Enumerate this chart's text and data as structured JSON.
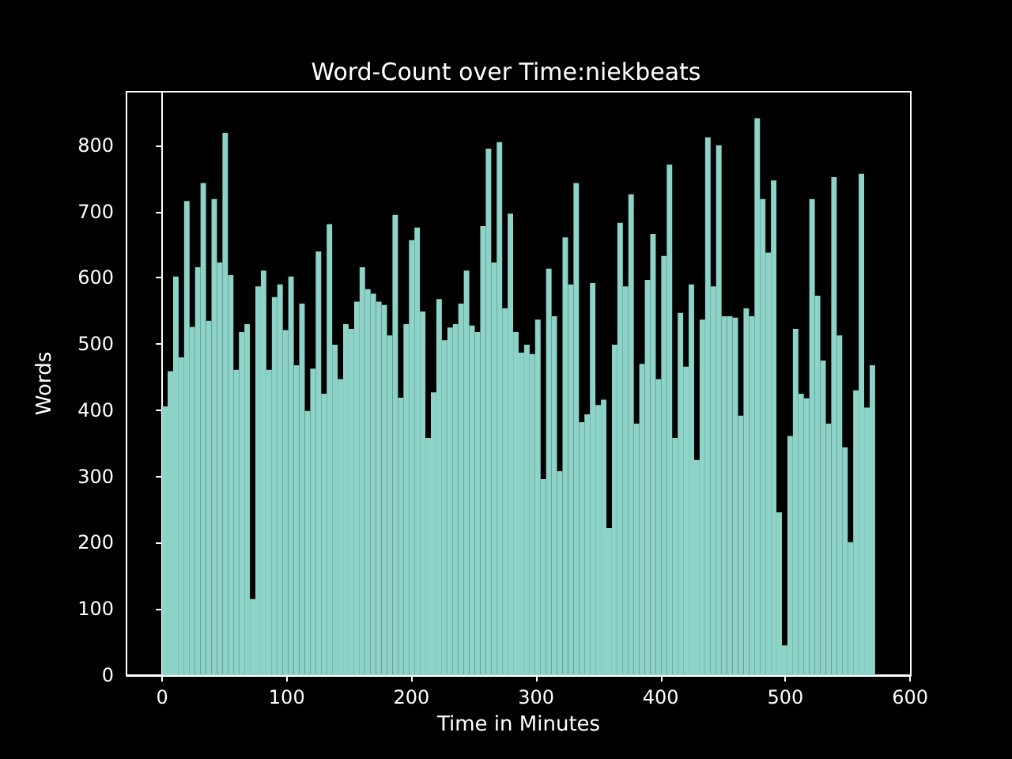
{
  "chart_data": {
    "type": "histogram",
    "title": "Word-Count over Time:niekbeats",
    "xlabel": "Time in Minutes",
    "ylabel": "Words",
    "color": "#8dd3c7",
    "bins": [
      0,
      4.4,
      8.8,
      13.2,
      17.6,
      22,
      26.4,
      30.8,
      35.2,
      39.6,
      44,
      48.4,
      52.8,
      57.2,
      61.6,
      66,
      70.4,
      74.8,
      79.2,
      83.6,
      88,
      92.4,
      96.8,
      101.2,
      105.6,
      110,
      114.4,
      118.8,
      123.2,
      127.6,
      132,
      136.4,
      140.8,
      145.2,
      149.6,
      154,
      158.4,
      162.8,
      167.2,
      171.6,
      176,
      180.4,
      184.8,
      189.2,
      193.6,
      198,
      202.4,
      206.8,
      211.2,
      215.6,
      220,
      224.4,
      228.8,
      233.2,
      237.6,
      242,
      246.4,
      250.8,
      255.2,
      259.6,
      264,
      268.4,
      272.8,
      277.2,
      281.6,
      286,
      290.4,
      294.8,
      299.2,
      303.6,
      308,
      312.4,
      316.8,
      321.2,
      325.6,
      330,
      334.4,
      338.8,
      343.2,
      347.6,
      352,
      356.4,
      360.8,
      365.2,
      369.6,
      374,
      378.4,
      382.8,
      387.2,
      391.6,
      396,
      400.4,
      404.8,
      409.2,
      413.6,
      418,
      422.4,
      426.8,
      431.2,
      435.6,
      440,
      444.4,
      448.8,
      453.2,
      457.6,
      462,
      466.4,
      470.8,
      475.2,
      479.6,
      484,
      488.4,
      492.8,
      497.2,
      501.6,
      506,
      510.4,
      514.8,
      519.2,
      523.6,
      528,
      532.4,
      536.8,
      541.2,
      545.6,
      550,
      554.4,
      558.8,
      563.2,
      567.6,
      572
    ],
    "values": [
      406,
      459,
      602,
      480,
      716,
      526,
      616,
      743,
      535,
      719,
      623,
      819,
      604,
      461,
      518,
      530,
      115,
      587,
      611,
      461,
      571,
      590,
      521,
      602,
      468,
      561,
      399,
      463,
      640,
      425,
      681,
      499,
      447,
      530,
      523,
      564,
      616,
      583,
      576,
      564,
      559,
      513,
      695,
      419,
      530,
      657,
      676,
      549,
      358,
      427,
      568,
      506,
      525,
      530,
      561,
      611,
      528,
      518,
      678,
      795,
      623,
      805,
      554,
      697,
      518,
      487,
      499,
      485,
      537,
      296,
      614,
      542,
      308,
      661,
      590,
      743,
      382,
      394,
      592,
      408,
      416,
      222,
      499,
      683,
      587,
      726,
      380,
      470,
      597,
      666,
      447,
      633,
      771,
      358,
      547,
      466,
      590,
      325,
      537,
      812,
      587,
      800,
      542,
      542,
      540,
      392,
      554,
      542,
      841,
      719,
      638,
      747,
      246,
      45,
      361,
      523,
      425,
      418,
      719,
      573,
      475,
      380,
      752,
      513,
      344,
      201,
      430,
      757,
      404,
      468
    ],
    "xlim": [
      -28.6,
      600.6
    ],
    "xticks": [
      0,
      100,
      200,
      300,
      400,
      500,
      600
    ],
    "ylim": [
      0,
      881
    ],
    "yticks": [
      0,
      100,
      200,
      300,
      400,
      500,
      600,
      700,
      800
    ]
  }
}
